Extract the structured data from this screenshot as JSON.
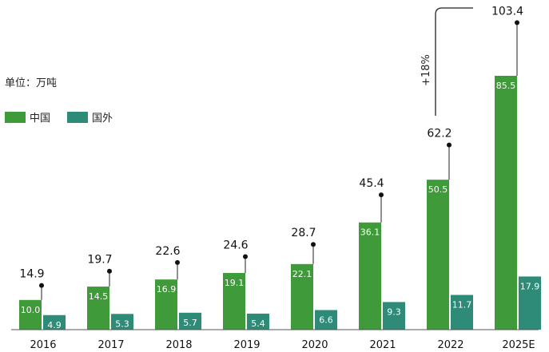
{
  "chart_data": {
    "type": "bar",
    "unit_label": "单位：万吨",
    "categories": [
      "2016",
      "2017",
      "2018",
      "2019",
      "2020",
      "2021",
      "2022",
      "2025E"
    ],
    "totals": [
      14.9,
      19.7,
      22.6,
      24.6,
      28.7,
      45.4,
      62.2,
      103.4
    ],
    "series": [
      {
        "name": "中国",
        "values": [
          10.0,
          14.5,
          16.9,
          19.1,
          22.1,
          36.1,
          50.5,
          85.5
        ],
        "color": "#3f9b3a"
      },
      {
        "name": "国外",
        "values": [
          4.9,
          5.3,
          5.7,
          5.4,
          6.6,
          9.3,
          11.7,
          17.9
        ],
        "color": "#2e8b78"
      }
    ],
    "annotation": {
      "text": "+18%",
      "from": "2022",
      "to": "2025E"
    },
    "legend_position": "left",
    "grid": false
  }
}
